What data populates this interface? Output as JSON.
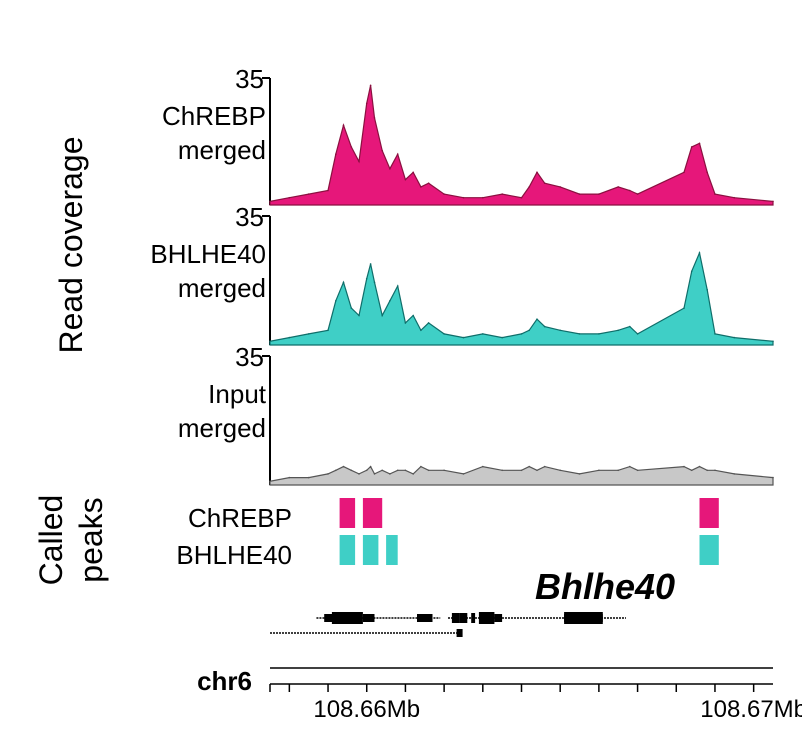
{
  "chart_data": {
    "type": "area",
    "ylabel": "Read coverage",
    "y_max_label": "35",
    "ylim": [
      0,
      35
    ],
    "xlim": [
      108.6575,
      108.6705
    ],
    "x_tick_labels": [
      {
        "value": 108.66,
        "label": "108.66Mb"
      },
      {
        "value": 108.67,
        "label": "108.67Mb"
      }
    ],
    "x_minor_ticks": [
      108.6575,
      108.658,
      108.659,
      108.66,
      108.661,
      108.662,
      108.663,
      108.664,
      108.665,
      108.666,
      108.667,
      108.668,
      108.669,
      108.67
    ],
    "series": [
      {
        "name": "ChREBP\nmerged",
        "color": "#e6177a",
        "line_color": "#8b1040",
        "x": [
          108.6575,
          108.658,
          108.6585,
          108.659,
          108.6592,
          108.6594,
          108.6596,
          108.6598,
          108.66,
          108.6601,
          108.6602,
          108.6604,
          108.6606,
          108.6608,
          108.661,
          108.6612,
          108.6614,
          108.6616,
          108.662,
          108.6625,
          108.663,
          108.6635,
          108.664,
          108.6642,
          108.6644,
          108.6646,
          108.665,
          108.6655,
          108.666,
          108.6665,
          108.6668,
          108.667,
          108.6682,
          108.6684,
          108.6686,
          108.6688,
          108.669,
          108.6695,
          108.6705
        ],
        "y": [
          1,
          2,
          3,
          4,
          14,
          22,
          16,
          12,
          28,
          33,
          24,
          15,
          10,
          14,
          7,
          9,
          5,
          6,
          3,
          2,
          2,
          3,
          2,
          5,
          9,
          6,
          5,
          3,
          3,
          5,
          4,
          3,
          9,
          16,
          17,
          9,
          3,
          2,
          1
        ]
      },
      {
        "name": "BHLHE40\nmerged",
        "color": "#3fcfc6",
        "line_color": "#0f6e6a",
        "x": [
          108.6575,
          108.658,
          108.6585,
          108.659,
          108.6592,
          108.6594,
          108.6596,
          108.6598,
          108.66,
          108.6601,
          108.6602,
          108.6604,
          108.6606,
          108.6608,
          108.661,
          108.6612,
          108.6614,
          108.6616,
          108.662,
          108.6625,
          108.663,
          108.6635,
          108.664,
          108.6642,
          108.6644,
          108.6646,
          108.665,
          108.6655,
          108.666,
          108.6665,
          108.6668,
          108.667,
          108.6682,
          108.6684,
          108.6686,
          108.6688,
          108.669,
          108.6695,
          108.6705
        ],
        "y": [
          1,
          2,
          3,
          4,
          12,
          17,
          10,
          8,
          18,
          22,
          17,
          8,
          12,
          16,
          6,
          8,
          4,
          6,
          3,
          2,
          3,
          2,
          3,
          4,
          7,
          5,
          4,
          3,
          3,
          4,
          5,
          3,
          10,
          20,
          25,
          15,
          3,
          2,
          1
        ]
      },
      {
        "name": "Input\nmerged",
        "color": "#c8c8c8",
        "line_color": "#555555",
        "x": [
          108.6575,
          108.658,
          108.6585,
          108.659,
          108.6592,
          108.6594,
          108.6596,
          108.6598,
          108.66,
          108.6601,
          108.6602,
          108.6604,
          108.6606,
          108.6608,
          108.661,
          108.6612,
          108.6614,
          108.6616,
          108.662,
          108.6625,
          108.663,
          108.6635,
          108.664,
          108.6642,
          108.6644,
          108.6646,
          108.665,
          108.6655,
          108.666,
          108.6665,
          108.6668,
          108.667,
          108.6682,
          108.6684,
          108.6686,
          108.6688,
          108.669,
          108.6695,
          108.6705
        ],
        "y": [
          1,
          2,
          2,
          3,
          4,
          5,
          4,
          3,
          4,
          5,
          3,
          4,
          3,
          4,
          4,
          3,
          5,
          4,
          4,
          3,
          5,
          4,
          4,
          5,
          4,
          5,
          4,
          3,
          4,
          4,
          5,
          4,
          5,
          4,
          5,
          4,
          4,
          3,
          2
        ]
      }
    ],
    "called_peaks": {
      "title": "Called\npeaks",
      "tracks": [
        {
          "name": "ChREBP",
          "color": "#e6177a",
          "peaks": [
            [
              108.6593,
              108.6597
            ],
            [
              108.6599,
              108.6604
            ],
            [
              108.6686,
              108.6691
            ]
          ]
        },
        {
          "name": "BHLHE40",
          "color": "#3fcfc6",
          "peaks": [
            [
              108.6593,
              108.6597
            ],
            [
              108.6599,
              108.6603
            ],
            [
              108.6605,
              108.6608
            ],
            [
              108.6686,
              108.6691
            ]
          ]
        }
      ]
    },
    "gene": {
      "name": "Bhlhe40",
      "track1_thin": [
        [
          108.6589,
          108.6592
        ],
        [
          108.6599,
          108.6602
        ],
        [
          108.6613,
          108.6617
        ],
        [
          108.6633,
          108.6635
        ],
        [
          108.6651,
          108.6661
        ]
      ],
      "track1_thick": [
        [
          108.6591,
          108.6599
        ],
        [
          108.6629,
          108.6633
        ],
        [
          108.6651,
          108.6661
        ]
      ],
      "track1_small": [
        [
          108.6622,
          108.6624
        ],
        [
          108.6624,
          108.6626
        ],
        [
          108.6627,
          108.6628
        ]
      ],
      "track1_line": [
        [
          108.6587,
          108.6619
        ],
        [
          108.6621,
          108.6667
        ]
      ],
      "track2_line": [
        108.6575,
        108.6624
      ]
    },
    "chrom": "chr6"
  }
}
